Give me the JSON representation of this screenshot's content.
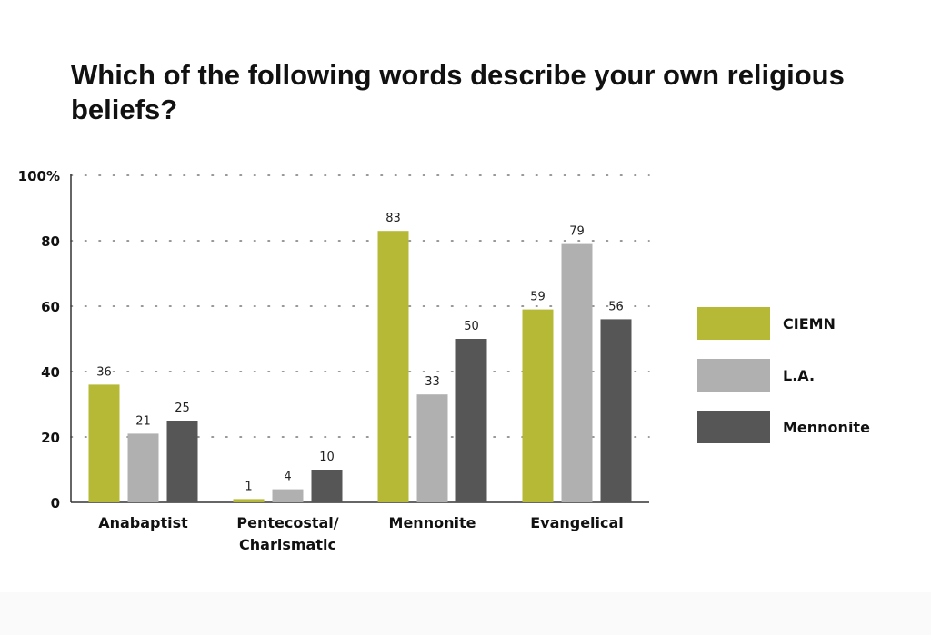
{
  "chart_data": {
    "type": "bar",
    "title": "Which of the following words describe your own religious beliefs?",
    "categories": [
      "Anabaptist",
      "Pentecostal/\nCharismatic",
      "Mennonite",
      "Evangelical"
    ],
    "series": [
      {
        "name": "CIEMN",
        "color": "#b5b935",
        "values": [
          36,
          1,
          83,
          59
        ]
      },
      {
        "name": "L.A.",
        "color": "#b0b0b0",
        "values": [
          21,
          4,
          33,
          79
        ]
      },
      {
        "name": "Mennonite",
        "color": "#565656",
        "values": [
          25,
          10,
          50,
          56
        ]
      }
    ],
    "yticks": [
      "0",
      "20",
      "40",
      "60",
      "80",
      "100%"
    ],
    "ylim": [
      0,
      100
    ],
    "grid": true,
    "legend_position": "right"
  }
}
